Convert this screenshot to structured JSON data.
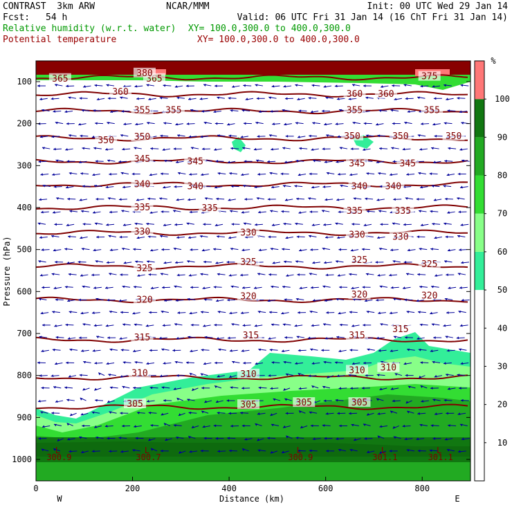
{
  "header": {
    "model": "CONTRAST  3km ARW",
    "fcst_label": "Fcst:",
    "fcst_value": "54 h",
    "center": "NCAR/MMM",
    "init": "Init: 00 UTC Wed 29 Jan 14",
    "valid": "Valid: 06 UTC Fri 31 Jan 14 (16 ChT Fri 31 Jan 14)",
    "field1": "Relative humidity (w.r.t. water)",
    "field1_xy": "XY= 100.0,300.0 to 400.0,300.0",
    "field2": "Potential temperature",
    "field2_xy": "XY= 100.0,300.0 to 400.0,300.0"
  },
  "colors": {
    "rh_fill": [
      "#33ee99",
      "#88ff88",
      "#33dd33",
      "#22aa22",
      "#117711",
      "#ff7777",
      "#880000"
    ],
    "theta_line": "#800000",
    "wind_arrow": "#000099",
    "field1_text": "#009900",
    "field2_text": "#990000"
  },
  "chart_data": {
    "type": "cross-section",
    "xlabel": "Distance (km)",
    "ylabel": "Pressure (hPa)",
    "x_ticks": [
      0,
      200,
      400,
      600,
      800
    ],
    "y_ticks": [
      100,
      200,
      300,
      400,
      500,
      600,
      700,
      800,
      900,
      1000
    ],
    "xlim": [
      0,
      900
    ],
    "ylim": [
      1050,
      50
    ],
    "x_end_labels": {
      "left": "W",
      "right": "E"
    },
    "colorbar": {
      "unit": "%",
      "ticks": [
        10,
        20,
        30,
        40,
        50,
        60,
        70,
        80,
        90,
        100
      ]
    },
    "theta_contours": [
      {
        "label": "365",
        "pressure": 90
      },
      {
        "label": "360",
        "pressure": 130
      },
      {
        "label": "355",
        "pressure": 170
      },
      {
        "label": "350",
        "pressure": 235
      },
      {
        "label": "345",
        "pressure": 290
      },
      {
        "label": "340",
        "pressure": 345
      },
      {
        "label": "335",
        "pressure": 400
      },
      {
        "label": "330",
        "pressure": 460
      },
      {
        "label": "325",
        "pressure": 540
      },
      {
        "label": "320",
        "pressure": 620
      },
      {
        "label": "315",
        "pressure": 715
      },
      {
        "label": "310",
        "pressure": 805
      },
      {
        "label": "305",
        "pressure": 875
      }
    ],
    "contour_labels": [
      {
        "text": "365",
        "x": 50,
        "p": 93
      },
      {
        "text": "365",
        "x": 245,
        "p": 93
      },
      {
        "text": "375",
        "x": 815,
        "p": 88
      },
      {
        "text": "380",
        "x": 225,
        "p": 80
      },
      {
        "text": "360",
        "x": 175,
        "p": 125
      },
      {
        "text": "360",
        "x": 660,
        "p": 130
      },
      {
        "text": "360",
        "x": 725,
        "p": 130
      },
      {
        "text": "355",
        "x": 220,
        "p": 168
      },
      {
        "text": "355",
        "x": 285,
        "p": 168
      },
      {
        "text": "355",
        "x": 660,
        "p": 168
      },
      {
        "text": "355",
        "x": 820,
        "p": 168
      },
      {
        "text": "350",
        "x": 145,
        "p": 240
      },
      {
        "text": "350",
        "x": 220,
        "p": 232
      },
      {
        "text": "350",
        "x": 655,
        "p": 230
      },
      {
        "text": "350",
        "x": 755,
        "p": 230
      },
      {
        "text": "350",
        "x": 865,
        "p": 230
      },
      {
        "text": "345",
        "x": 220,
        "p": 285
      },
      {
        "text": "345",
        "x": 330,
        "p": 290
      },
      {
        "text": "345",
        "x": 665,
        "p": 295
      },
      {
        "text": "345",
        "x": 770,
        "p": 295
      },
      {
        "text": "340",
        "x": 220,
        "p": 345
      },
      {
        "text": "340",
        "x": 330,
        "p": 350
      },
      {
        "text": "340",
        "x": 670,
        "p": 350
      },
      {
        "text": "340",
        "x": 740,
        "p": 350
      },
      {
        "text": "335",
        "x": 220,
        "p": 400
      },
      {
        "text": "335",
        "x": 360,
        "p": 402
      },
      {
        "text": "335",
        "x": 660,
        "p": 408
      },
      {
        "text": "335",
        "x": 760,
        "p": 408
      },
      {
        "text": "330",
        "x": 220,
        "p": 458
      },
      {
        "text": "330",
        "x": 440,
        "p": 460
      },
      {
        "text": "330",
        "x": 665,
        "p": 465
      },
      {
        "text": "330",
        "x": 755,
        "p": 470
      },
      {
        "text": "325",
        "x": 225,
        "p": 545
      },
      {
        "text": "325",
        "x": 440,
        "p": 530
      },
      {
        "text": "325",
        "x": 670,
        "p": 525
      },
      {
        "text": "325",
        "x": 815,
        "p": 535
      },
      {
        "text": "320",
        "x": 225,
        "p": 620
      },
      {
        "text": "320",
        "x": 440,
        "p": 612
      },
      {
        "text": "320",
        "x": 670,
        "p": 608
      },
      {
        "text": "320",
        "x": 815,
        "p": 610
      },
      {
        "text": "315",
        "x": 220,
        "p": 710
      },
      {
        "text": "315",
        "x": 445,
        "p": 705
      },
      {
        "text": "315",
        "x": 665,
        "p": 705
      },
      {
        "text": "315",
        "x": 755,
        "p": 690
      },
      {
        "text": "310",
        "x": 215,
        "p": 795
      },
      {
        "text": "310",
        "x": 440,
        "p": 797
      },
      {
        "text": "310",
        "x": 665,
        "p": 788
      },
      {
        "text": "310",
        "x": 730,
        "p": 782
      },
      {
        "text": "305",
        "x": 205,
        "p": 868
      },
      {
        "text": "305",
        "x": 440,
        "p": 870
      },
      {
        "text": "305",
        "x": 555,
        "p": 865
      },
      {
        "text": "305",
        "x": 670,
        "p": 865
      }
    ],
    "extrema": [
      {
        "mark": "L",
        "value": "300.9",
        "x": 45
      },
      {
        "mark": "L",
        "value": "300.7",
        "x": 230
      },
      {
        "mark": "L",
        "value": "300.9",
        "x": 545
      },
      {
        "mark": "L",
        "value": "301.1",
        "x": 720
      },
      {
        "mark": "L",
        "value": "301.1",
        "x": 835
      }
    ]
  }
}
